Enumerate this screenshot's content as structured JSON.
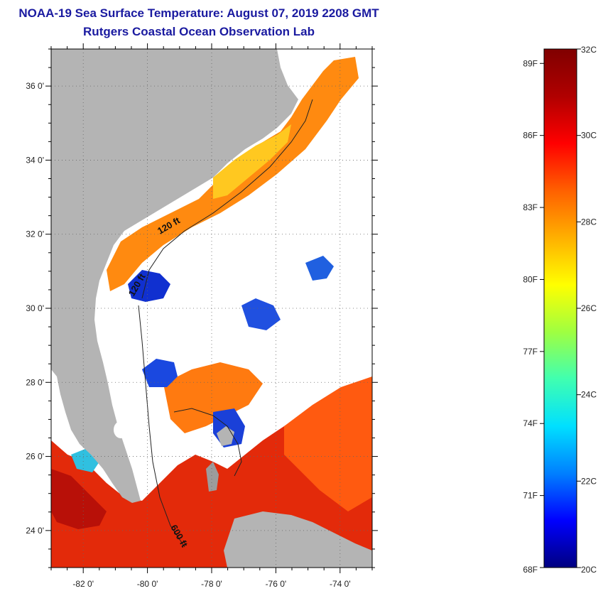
{
  "header": {
    "title": "NOAA-19 Sea Surface Temperature:  August 07, 2019 2208 GMT",
    "subtitle": "Rutgers Coastal Ocean Observation Lab"
  },
  "map": {
    "lat_range": [
      23.0,
      37.0
    ],
    "lon_range": [
      -83.0,
      -73.0
    ],
    "lat_labels": [
      {
        "value": 36,
        "text": "36 0'"
      },
      {
        "value": 34,
        "text": "34 0'"
      },
      {
        "value": 32,
        "text": "32 0'"
      },
      {
        "value": 30,
        "text": "30 0'"
      },
      {
        "value": 28,
        "text": "28 0'"
      },
      {
        "value": 26,
        "text": "26 0'"
      },
      {
        "value": 24,
        "text": "24 0'"
      }
    ],
    "lon_labels": [
      {
        "value": -82,
        "text": "-82 0'"
      },
      {
        "value": -80,
        "text": "-80 0'"
      },
      {
        "value": -78,
        "text": "-78 0'"
      },
      {
        "value": -76,
        "text": "-76 0'"
      },
      {
        "value": -74,
        "text": "-74 0'"
      }
    ],
    "isobath_labels": [
      {
        "text": "120 ft",
        "rotate": -30
      },
      {
        "text": "120 ft",
        "rotate": -60
      },
      {
        "text": "600 ft",
        "rotate": 60
      }
    ],
    "colors": {
      "land": "#b4b4b4",
      "cloud": "#ffffff"
    }
  },
  "colorbar": {
    "range_c": [
      20,
      32
    ],
    "colors": [
      "#000080",
      "#0000ff",
      "#0080ff",
      "#00e0ff",
      "#40ffb0",
      "#a0ff40",
      "#ffff00",
      "#ffb000",
      "#ff6000",
      "#ff0000",
      "#b00000",
      "#800000"
    ],
    "celsius_labels": [
      {
        "value": 32,
        "text": "32C"
      },
      {
        "value": 30,
        "text": "30C"
      },
      {
        "value": 28,
        "text": "28C"
      },
      {
        "value": 26,
        "text": "26C"
      },
      {
        "value": 24,
        "text": "24C"
      },
      {
        "value": 22,
        "text": "22C"
      },
      {
        "value": 20,
        "text": "20C"
      }
    ],
    "fahrenheit_labels": [
      {
        "value": 89,
        "text": "89F"
      },
      {
        "value": 86,
        "text": "86F"
      },
      {
        "value": 83,
        "text": "83F"
      },
      {
        "value": 80,
        "text": "80F"
      },
      {
        "value": 77,
        "text": "77F"
      },
      {
        "value": 74,
        "text": "74F"
      },
      {
        "value": 71,
        "text": "71F"
      },
      {
        "value": 68,
        "text": "68F"
      }
    ]
  }
}
